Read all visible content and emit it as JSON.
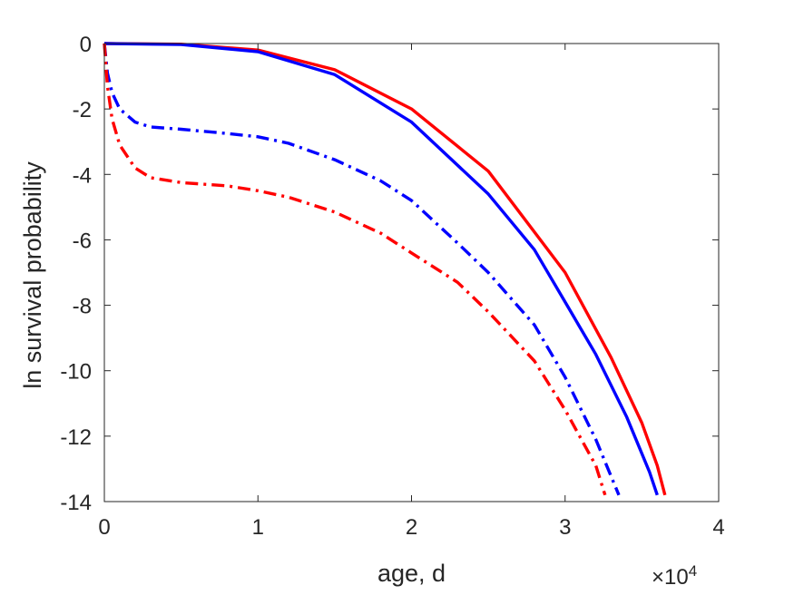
{
  "chart_data": {
    "type": "line",
    "xlabel": "age, d",
    "ylabel": "ln survival probability",
    "x_exponent_base": "×10",
    "x_exponent_power": "4",
    "xlim": [
      0,
      40000
    ],
    "ylim": [
      -14,
      0
    ],
    "xticks": [
      0,
      10000,
      20000,
      30000,
      40000
    ],
    "xtick_labels": [
      "0",
      "1",
      "2",
      "3",
      "4"
    ],
    "yticks": [
      0,
      -2,
      -4,
      -6,
      -8,
      -10,
      -12,
      -14
    ],
    "ytick_labels": [
      "0",
      "-2",
      "-4",
      "-6",
      "-8",
      "-10",
      "-12",
      "-14"
    ],
    "grid": false,
    "box": true,
    "series": [
      {
        "color": "#ff0000",
        "style": "solid",
        "points": [
          [
            0,
            0
          ],
          [
            5000,
            -0.02
          ],
          [
            10000,
            -0.2
          ],
          [
            15000,
            -0.8
          ],
          [
            20000,
            -2.0
          ],
          [
            25000,
            -3.9
          ],
          [
            30000,
            -7.0
          ],
          [
            33000,
            -9.6
          ],
          [
            35000,
            -11.6
          ],
          [
            36000,
            -12.9
          ],
          [
            36500,
            -13.8
          ]
        ]
      },
      {
        "color": "#0000ff",
        "style": "solid",
        "points": [
          [
            0,
            0
          ],
          [
            5000,
            -0.03
          ],
          [
            10000,
            -0.25
          ],
          [
            15000,
            -0.95
          ],
          [
            20000,
            -2.4
          ],
          [
            25000,
            -4.6
          ],
          [
            28000,
            -6.3
          ],
          [
            30000,
            -7.9
          ],
          [
            32000,
            -9.5
          ],
          [
            34000,
            -11.4
          ],
          [
            35500,
            -13.1
          ],
          [
            36000,
            -13.8
          ]
        ]
      },
      {
        "color": "#0000ff",
        "style": "dashdot",
        "points": [
          [
            0,
            0
          ],
          [
            200,
            -0.9
          ],
          [
            500,
            -1.5
          ],
          [
            1000,
            -2.0
          ],
          [
            2000,
            -2.4
          ],
          [
            3000,
            -2.55
          ],
          [
            5000,
            -2.62
          ],
          [
            8000,
            -2.75
          ],
          [
            10000,
            -2.85
          ],
          [
            12000,
            -3.05
          ],
          [
            15000,
            -3.55
          ],
          [
            18000,
            -4.2
          ],
          [
            20000,
            -4.8
          ],
          [
            23000,
            -6.1
          ],
          [
            25000,
            -7.0
          ],
          [
            28000,
            -8.6
          ],
          [
            30000,
            -10.2
          ],
          [
            32000,
            -12.1
          ],
          [
            33500,
            -13.8
          ]
        ]
      },
      {
        "color": "#ff0000",
        "style": "dashdot",
        "points": [
          [
            0,
            0
          ],
          [
            200,
            -1.3
          ],
          [
            500,
            -2.3
          ],
          [
            1000,
            -3.1
          ],
          [
            2000,
            -3.8
          ],
          [
            3000,
            -4.1
          ],
          [
            5000,
            -4.25
          ],
          [
            8000,
            -4.35
          ],
          [
            10000,
            -4.5
          ],
          [
            12000,
            -4.7
          ],
          [
            15000,
            -5.15
          ],
          [
            18000,
            -5.8
          ],
          [
            20000,
            -6.4
          ],
          [
            23000,
            -7.3
          ],
          [
            25000,
            -8.2
          ],
          [
            28000,
            -9.7
          ],
          [
            30000,
            -11.2
          ],
          [
            32000,
            -12.9
          ],
          [
            32600,
            -13.8
          ]
        ]
      }
    ]
  }
}
